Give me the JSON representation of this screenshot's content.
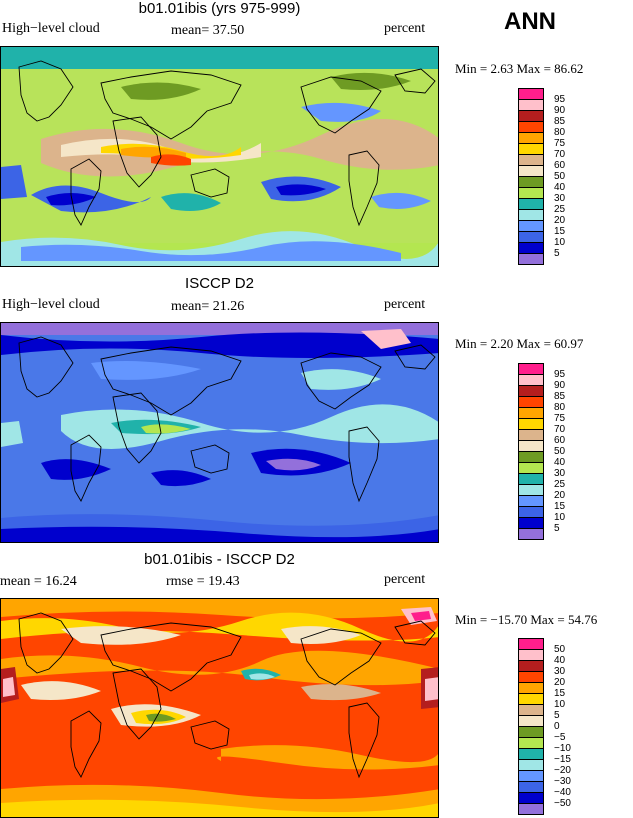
{
  "season": "ANN",
  "panels": [
    {
      "title": "b01.01ibis (yrs 975-999)",
      "left_label": "High−level cloud",
      "center_label": "mean=   37.50",
      "right_label": "percent",
      "minmax": "Min =    2.63 Max =  86.62",
      "background": "#b8e35a",
      "colorbar": {
        "labels": [
          "95",
          "90",
          "85",
          "80",
          "75",
          "70",
          "60",
          "50",
          "40",
          "30",
          "25",
          "20",
          "15",
          "10",
          "5"
        ],
        "colors": [
          "#ff1e8c",
          "#ffc0cb",
          "#b41e1e",
          "#ff4500",
          "#ffa500",
          "#ffd700",
          "#dcb48c",
          "#f5e6c8",
          "#6e9b23",
          "#b4e650",
          "#20b2aa",
          "#a0e6e6",
          "#6496ff",
          "#3c64e6",
          "#0000cd",
          "#9370db"
        ]
      }
    },
    {
      "title": "ISCCP D2",
      "left_label": "High−level cloud",
      "center_label": "mean=   21.26",
      "right_label": "percent",
      "minmax": "Min =    2.20 Max =  60.97",
      "background": "#4a78e8",
      "colorbar": {
        "labels": [
          "95",
          "90",
          "85",
          "80",
          "75",
          "70",
          "60",
          "50",
          "40",
          "30",
          "25",
          "20",
          "15",
          "10",
          "5"
        ],
        "colors": [
          "#ff1e8c",
          "#ffc0cb",
          "#b41e1e",
          "#ff4500",
          "#ffa500",
          "#ffd700",
          "#dcb48c",
          "#f5e6c8",
          "#6e9b23",
          "#b4e650",
          "#20b2aa",
          "#a0e6e6",
          "#6496ff",
          "#3c64e6",
          "#0000cd",
          "#9370db"
        ]
      }
    },
    {
      "title": "b01.01ibis - ISCCP D2",
      "left_label": "mean =   16.24",
      "center_label": "rmse =   19.43",
      "right_label": "percent",
      "minmax": "Min = −15.70 Max =  54.76",
      "background": "#ff4500",
      "colorbar": {
        "labels": [
          "50",
          "40",
          "30",
          "20",
          "15",
          "10",
          "5",
          "0",
          "−5",
          "−10",
          "−15",
          "−20",
          "−30",
          "−40",
          "−50"
        ],
        "colors": [
          "#ff1e8c",
          "#ffc0cb",
          "#b41e1e",
          "#ff4500",
          "#ffa500",
          "#ffd700",
          "#dcb48c",
          "#f5e6c8",
          "#6e9b23",
          "#b4e650",
          "#20b2aa",
          "#a0e6e6",
          "#6496ff",
          "#3c64e6",
          "#0000cd",
          "#9370db"
        ]
      }
    }
  ]
}
